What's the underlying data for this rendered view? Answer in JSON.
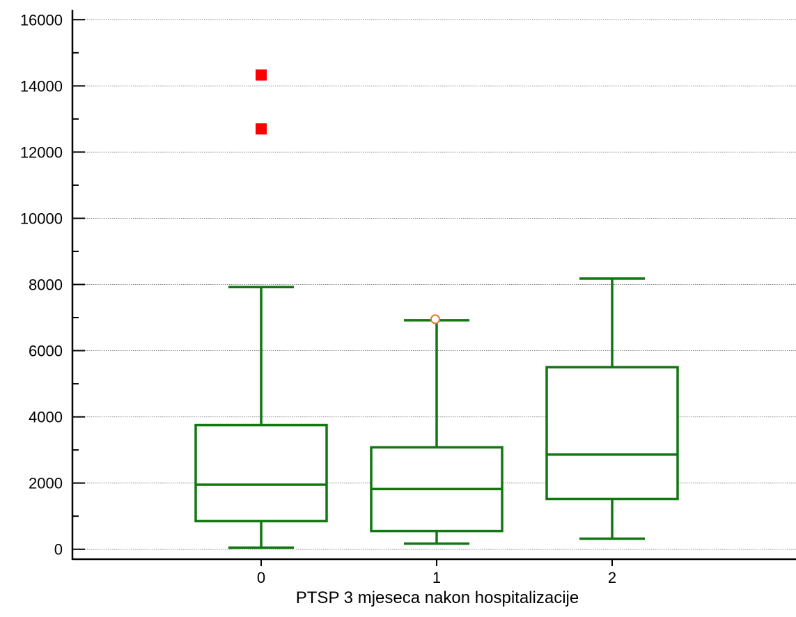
{
  "chart_data": {
    "type": "boxplot",
    "title": "",
    "xlabel": "PTSP 3 mjeseca nakon hospitalizacije",
    "ylabel": "",
    "ylim": [
      -300,
      16300
    ],
    "yticks": [
      0,
      2000,
      4000,
      6000,
      8000,
      10000,
      12000,
      14000,
      16000
    ],
    "yticks_minor": [
      1000,
      3000,
      5000,
      7000,
      9000,
      11000,
      13000,
      15000
    ],
    "grid": "horizontal-dotted",
    "categories": [
      "0",
      "1",
      "2"
    ],
    "boxes": [
      {
        "category": "0",
        "whisker_low": 50,
        "q1": 850,
        "median": 1950,
        "q3": 3750,
        "whisker_high": 7920,
        "outliers": [],
        "far_outliers": [
          12700,
          14330
        ]
      },
      {
        "category": "1",
        "whisker_low": 170,
        "q1": 550,
        "median": 1820,
        "q3": 3080,
        "whisker_high": 6920,
        "outliers": [
          6950
        ],
        "far_outliers": []
      },
      {
        "category": "2",
        "whisker_low": 320,
        "q1": 1520,
        "median": 2860,
        "q3": 5500,
        "whisker_high": 8180,
        "outliers": [],
        "far_outliers": []
      }
    ],
    "colors": {
      "box": "#117711",
      "outlier_stroke": "#e87722",
      "far_outlier": "#ff0000",
      "axis": "#000000",
      "grid": "#808080"
    }
  }
}
